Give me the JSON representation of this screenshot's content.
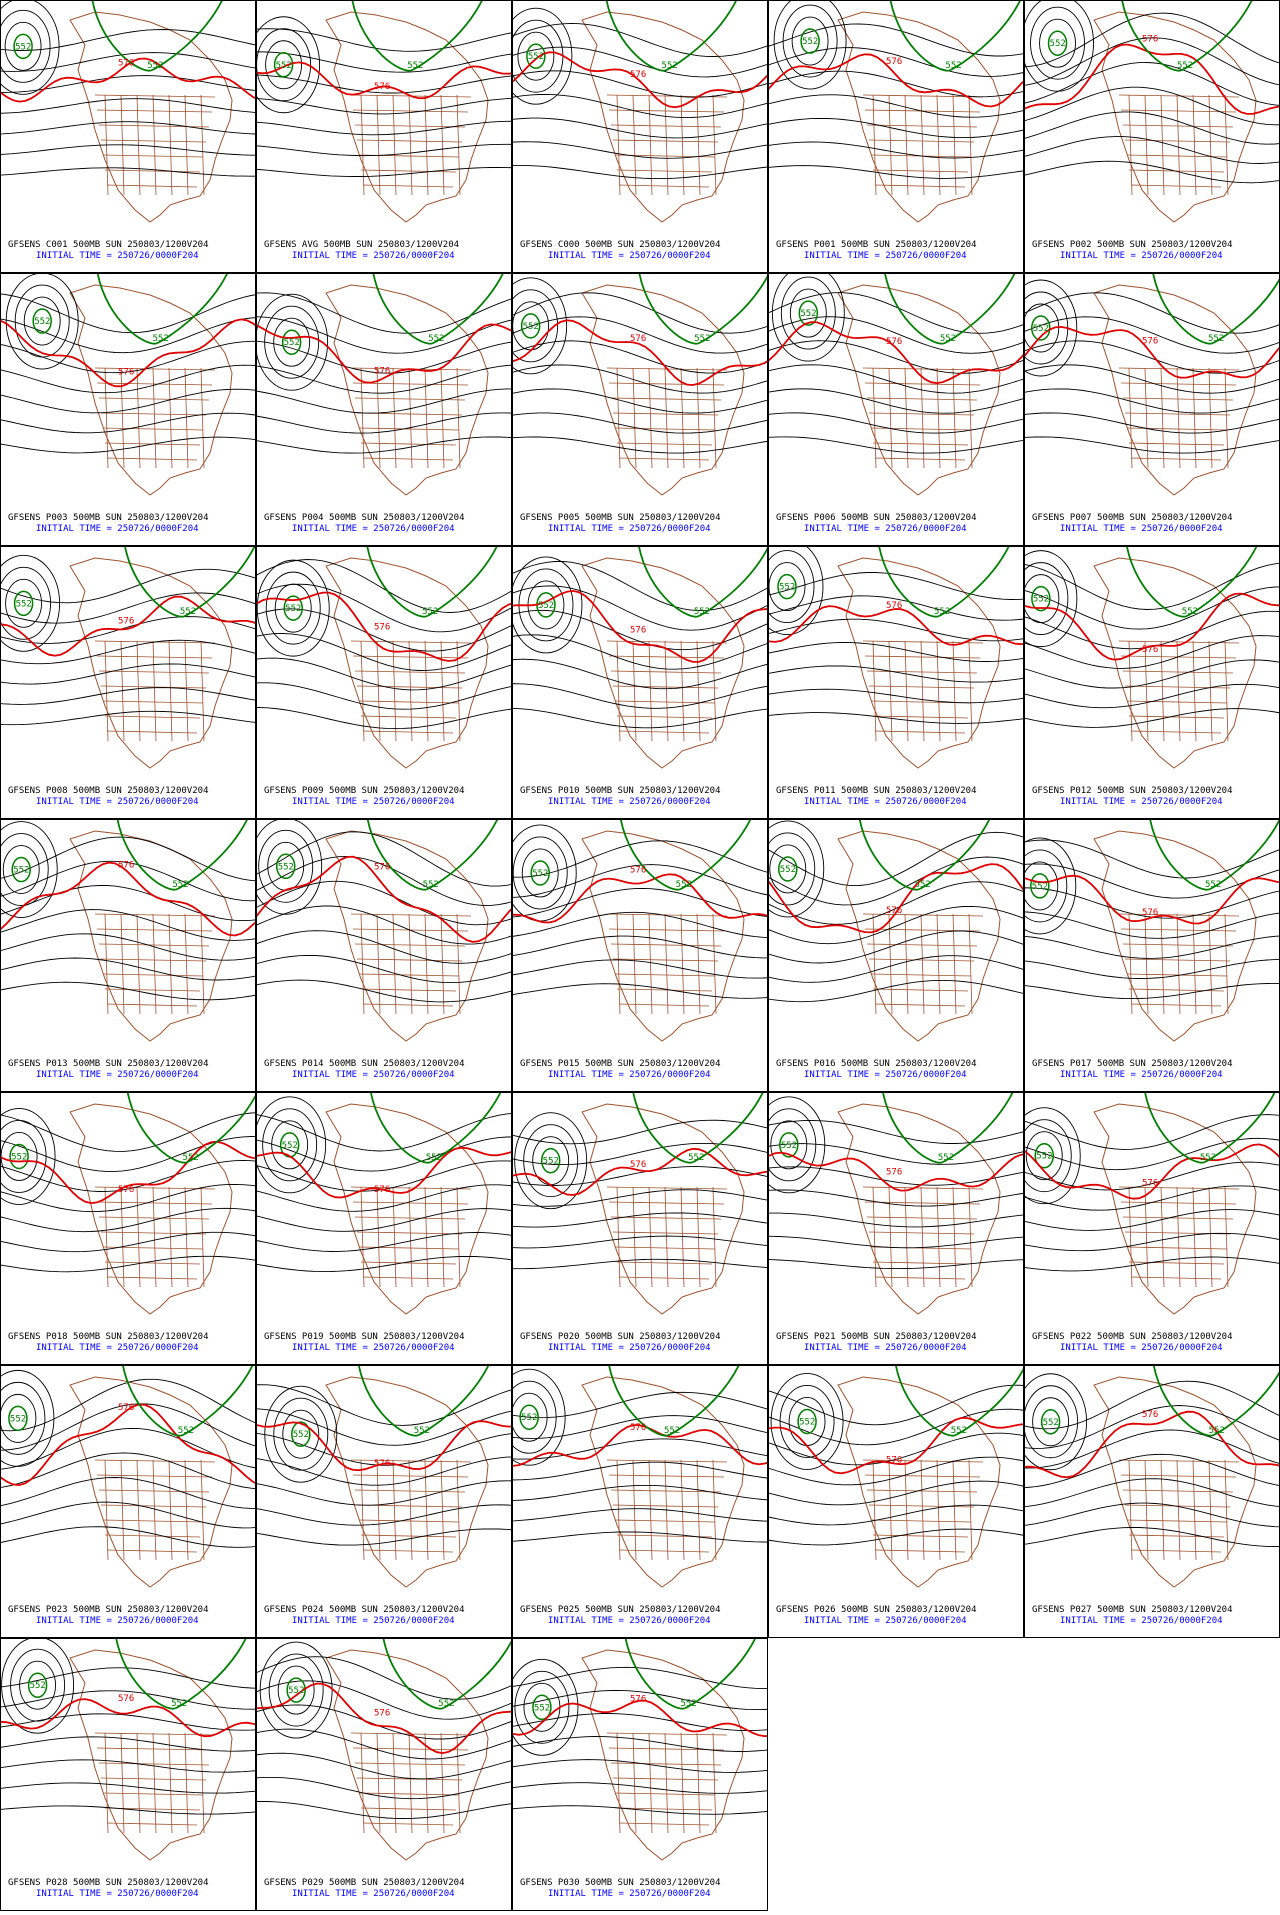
{
  "panels": [
    {
      "line1": "GFSENS C001 500MB SUN 250803/1200V204",
      "line2": "INITIAL TIME = 250726/0000F204"
    },
    {
      "line1": "GFSENS AVG 500MB SUN 250803/1200V204",
      "line2": "INITIAL TIME = 250726/0000F204"
    },
    {
      "line1": "GFSENS C000 500MB SUN 250803/1200V204",
      "line2": "INITIAL TIME = 250726/0000F204"
    },
    {
      "line1": "GFSENS P001 500MB SUN 250803/1200V204",
      "line2": "INITIAL TIME = 250726/0000F204"
    },
    {
      "line1": "GFSENS P002 500MB SUN 250803/1200V204",
      "line2": "INITIAL TIME = 250726/0000F204"
    },
    {
      "line1": "GFSENS P003 500MB SUN 250803/1200V204",
      "line2": "INITIAL TIME = 250726/0000F204"
    },
    {
      "line1": "GFSENS P004 500MB SUN 250803/1200V204",
      "line2": "INITIAL TIME = 250726/0000F204"
    },
    {
      "line1": "GFSENS P005 500MB SUN 250803/1200V204",
      "line2": "INITIAL TIME = 250726/0000F204"
    },
    {
      "line1": "GFSENS P006 500MB SUN 250803/1200V204",
      "line2": "INITIAL TIME = 250726/0000F204"
    },
    {
      "line1": "GFSENS P007 500MB SUN 250803/1200V204",
      "line2": "INITIAL TIME = 250726/0000F204"
    },
    {
      "line1": "GFSENS P008 500MB SUN 250803/1200V204",
      "line2": "INITIAL TIME = 250726/0000F204"
    },
    {
      "line1": "GFSENS P009 500MB SUN 250803/1200V204",
      "line2": "INITIAL TIME = 250726/0000F204"
    },
    {
      "line1": "GFSENS P010 500MB SUN 250803/1200V204",
      "line2": "INITIAL TIME = 250726/0000F204"
    },
    {
      "line1": "GFSENS P011 500MB SUN 250803/1200V204",
      "line2": "INITIAL TIME = 250726/0000F204"
    },
    {
      "line1": "GFSENS P012 500MB SUN 250803/1200V204",
      "line2": "INITIAL TIME = 250726/0000F204"
    },
    {
      "line1": "GFSENS P013 500MB SUN 250803/1200V204",
      "line2": "INITIAL TIME = 250726/0000F204"
    },
    {
      "line1": "GFSENS P014 500MB SUN 250803/1200V204",
      "line2": "INITIAL TIME = 250726/0000F204"
    },
    {
      "line1": "GFSENS P015 500MB SUN 250803/1200V204",
      "line2": "INITIAL TIME = 250726/0000F204"
    },
    {
      "line1": "GFSENS P016 500MB SUN 250803/1200V204",
      "line2": "INITIAL TIME = 250726/0000F204"
    },
    {
      "line1": "GFSENS P017 500MB SUN 250803/1200V204",
      "line2": "INITIAL TIME = 250726/0000F204"
    },
    {
      "line1": "GFSENS P018 500MB SUN 250803/1200V204",
      "line2": "INITIAL TIME = 250726/0000F204"
    },
    {
      "line1": "GFSENS P019 500MB SUN 250803/1200V204",
      "line2": "INITIAL TIME = 250726/0000F204"
    },
    {
      "line1": "GFSENS P020 500MB SUN 250803/1200V204",
      "line2": "INITIAL TIME = 250726/0000F204"
    },
    {
      "line1": "GFSENS P021 500MB SUN 250803/1200V204",
      "line2": "INITIAL TIME = 250726/0000F204"
    },
    {
      "line1": "GFSENS P022 500MB SUN 250803/1200V204",
      "line2": "INITIAL TIME = 250726/0000F204"
    },
    {
      "line1": "GFSENS P023 500MB SUN 250803/1200V204",
      "line2": "INITIAL TIME = 250726/0000F204"
    },
    {
      "line1": "GFSENS P024 500MB SUN 250803/1200V204",
      "line2": "INITIAL TIME = 250726/0000F204"
    },
    {
      "line1": "GFSENS P025 500MB SUN 250803/1200V204",
      "line2": "INITIAL TIME = 250726/0000F204"
    },
    {
      "line1": "GFSENS P026 500MB SUN 250803/1200V204",
      "line2": "INITIAL TIME = 250726/0000F204"
    },
    {
      "line1": "GFSENS P027 500MB SUN 250803/1200V204",
      "line2": "INITIAL TIME = 250726/0000F204"
    },
    {
      "line1": "GFSENS P028 500MB SUN 250803/1200V204",
      "line2": "INITIAL TIME = 250726/0000F204"
    },
    {
      "line1": "GFSENS P029 500MB SUN 250803/1200V204",
      "line2": "INITIAL TIME = 250726/0000F204"
    },
    {
      "line1": "GFSENS P030 500MB SUN 250803/1200V204",
      "line2": "INITIAL TIME = 250726/0000F204"
    }
  ],
  "contour_labels": {
    "green": "552",
    "red": "576"
  }
}
